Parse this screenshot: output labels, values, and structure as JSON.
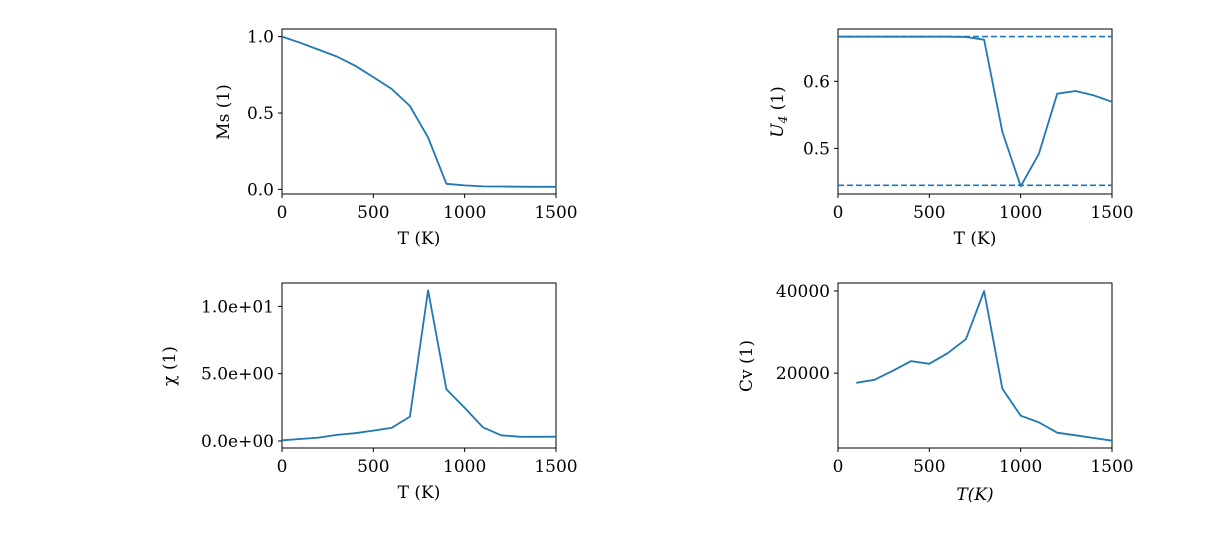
{
  "chart_data": [
    {
      "type": "line",
      "xlabel": "T (K)",
      "ylabel": "Ms (1)",
      "xlim": [
        0,
        1500
      ],
      "ylim": [
        -0.03,
        1.05
      ],
      "xticks": [
        0,
        500,
        1000,
        1500
      ],
      "xtick_labels": [
        "0",
        "500",
        "1000",
        "1500"
      ],
      "yticks": [
        0,
        0.5,
        1.0
      ],
      "ytick_labels": [
        "0.0",
        "0.5",
        "1.0"
      ],
      "grid": false,
      "color": "#1f77b4",
      "x": [
        0,
        100,
        200,
        300,
        400,
        500,
        600,
        700,
        800,
        900,
        1000,
        1100,
        1200,
        1300,
        1400,
        1500
      ],
      "y": [
        1.0,
        0.96,
        0.915,
        0.87,
        0.81,
        0.735,
        0.658,
        0.546,
        0.34,
        0.037,
        0.026,
        0.02,
        0.019,
        0.018,
        0.017,
        0.017
      ],
      "hlines": []
    },
    {
      "type": "line",
      "xlabel": "T (K)",
      "ylabel": "U4 (1)",
      "ylabel_math": true,
      "xlim": [
        0,
        1500
      ],
      "ylim": [
        0.432,
        0.678
      ],
      "xticks": [
        0,
        500,
        1000,
        1500
      ],
      "xtick_labels": [
        "0",
        "500",
        "1000",
        "1500"
      ],
      "yticks": [
        0.5,
        0.6
      ],
      "ytick_labels": [
        "0.5",
        "0.6"
      ],
      "grid": false,
      "color": "#1f77b4",
      "x": [
        0,
        100,
        200,
        300,
        400,
        500,
        600,
        700,
        800,
        900,
        1000,
        1100,
        1200,
        1300,
        1400,
        1500
      ],
      "y": [
        0.6665,
        0.6665,
        0.6665,
        0.6665,
        0.6665,
        0.6665,
        0.6665,
        0.666,
        0.662,
        0.5245,
        0.4435,
        0.492,
        0.5815,
        0.5855,
        0.579,
        0.5695
      ],
      "hlines": [
        0.6667,
        0.445
      ]
    },
    {
      "type": "line",
      "xlabel": "T (K)",
      "ylabel": "χ (1)",
      "xlim": [
        0,
        1500
      ],
      "ylim": [
        -0.52,
        11.74
      ],
      "xticks": [
        0,
        500,
        1000,
        1500
      ],
      "xtick_labels": [
        "0",
        "500",
        "1000",
        "1500"
      ],
      "yticks": [
        0,
        5,
        10
      ],
      "ytick_labels": [
        "0.0e+00",
        "5.0e+00",
        "1.0e+01"
      ],
      "grid": false,
      "color": "#1f77b4",
      "x": [
        0,
        100,
        200,
        300,
        400,
        500,
        600,
        700,
        800,
        900,
        1000,
        1100,
        1200,
        1300,
        1400,
        1500
      ],
      "y": [
        0.05,
        0.15,
        0.25,
        0.45,
        0.58,
        0.77,
        0.97,
        1.81,
        11.2,
        3.85,
        2.46,
        1.02,
        0.42,
        0.32,
        0.31,
        0.32
      ],
      "hlines": []
    },
    {
      "type": "line",
      "xlabel": "T(K)",
      "xlabel_math": true,
      "ylabel": "Cv (1)",
      "xlim": [
        0,
        1500
      ],
      "ylim": [
        1780,
        41940
      ],
      "xticks": [
        0,
        500,
        1000,
        1500
      ],
      "xtick_labels": [
        "0",
        "500",
        "1000",
        "1500"
      ],
      "yticks": [
        20000,
        40000
      ],
      "ytick_labels": [
        "20000",
        "40000"
      ],
      "grid": false,
      "color": "#1f77b4",
      "x": [
        100,
        200,
        300,
        400,
        500,
        600,
        700,
        800,
        900,
        1000,
        1100,
        1200,
        1300,
        1400,
        1500
      ],
      "y": [
        17650,
        18380,
        20570,
        22920,
        22270,
        24860,
        28260,
        40000,
        16190,
        9640,
        8020,
        5510,
        4860,
        4210,
        3560
      ],
      "hlines": []
    }
  ]
}
